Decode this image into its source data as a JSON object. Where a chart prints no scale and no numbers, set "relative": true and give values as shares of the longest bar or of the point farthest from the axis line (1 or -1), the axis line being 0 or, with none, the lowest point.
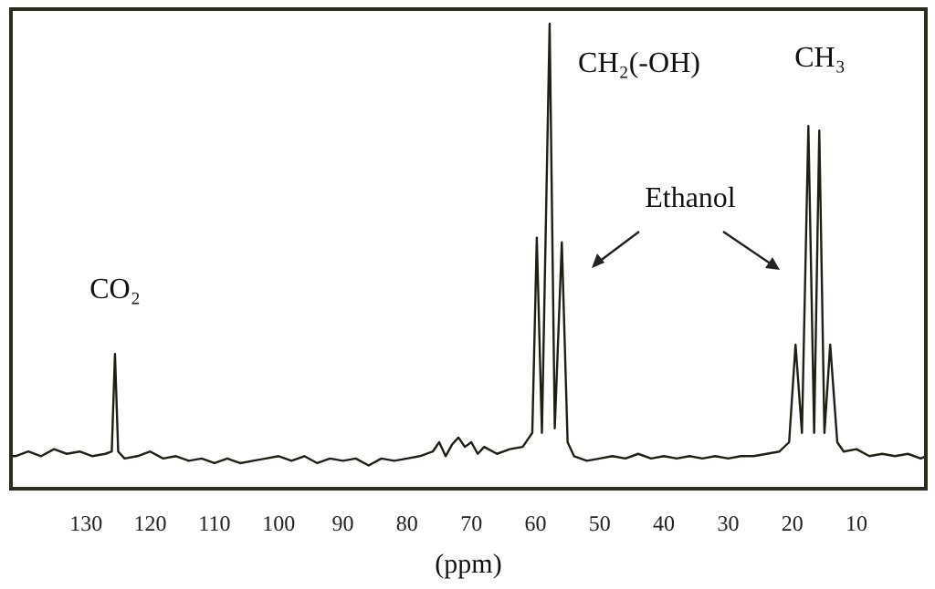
{
  "chart_data": {
    "type": "line",
    "relative": true,
    "xlabel": "(ppm)",
    "xlim": [
      141.7,
      -0.8
    ],
    "xticks": [
      130,
      120,
      110,
      100,
      90,
      80,
      70,
      60,
      50,
      40,
      30,
      20,
      10
    ],
    "grid": false,
    "marker": "none",
    "line_style": "solid",
    "series": [
      {
        "color": "#1f1f14",
        "x": [
          141.7,
          141,
          139,
          137,
          135,
          133,
          131,
          129,
          127,
          126,
          125.5,
          125,
          124,
          122,
          120,
          118,
          116,
          114,
          112,
          110,
          108,
          106,
          104,
          102,
          100,
          98,
          96,
          94,
          92,
          90,
          88,
          86,
          84,
          82,
          80,
          78,
          76,
          75,
          74,
          73,
          72,
          71,
          70,
          69,
          68,
          66,
          64,
          62,
          61,
          60.5,
          59.8,
          59,
          57.8,
          57,
          55.9,
          55,
          54,
          52,
          50,
          48,
          46,
          44,
          42,
          40,
          38,
          36,
          34,
          32,
          30,
          28,
          26,
          24,
          22,
          20.5,
          19.5,
          18.5,
          17.5,
          16.6,
          15.8,
          15,
          14.1,
          13,
          12,
          10,
          8,
          6,
          4,
          2,
          0,
          -0.8
        ],
        "values": [
          0.07,
          0.07,
          0.08,
          0.07,
          0.085,
          0.075,
          0.08,
          0.07,
          0.075,
          0.08,
          0.29,
          0.08,
          0.065,
          0.07,
          0.08,
          0.065,
          0.07,
          0.06,
          0.065,
          0.055,
          0.065,
          0.055,
          0.06,
          0.065,
          0.07,
          0.06,
          0.07,
          0.055,
          0.065,
          0.06,
          0.065,
          0.05,
          0.065,
          0.06,
          0.065,
          0.07,
          0.08,
          0.1,
          0.07,
          0.095,
          0.11,
          0.09,
          0.1,
          0.075,
          0.09,
          0.075,
          0.085,
          0.09,
          0.11,
          0.12,
          0.54,
          0.12,
          1.0,
          0.13,
          0.53,
          0.1,
          0.07,
          0.06,
          0.065,
          0.07,
          0.065,
          0.075,
          0.065,
          0.07,
          0.065,
          0.07,
          0.065,
          0.07,
          0.065,
          0.07,
          0.07,
          0.075,
          0.08,
          0.1,
          0.31,
          0.12,
          0.78,
          0.12,
          0.77,
          0.12,
          0.31,
          0.1,
          0.08,
          0.085,
          0.07,
          0.075,
          0.07,
          0.075,
          0.065,
          0.07
        ]
      }
    ],
    "annotations": [
      "CO₂",
      "CH₂(-OH)",
      "CH₃",
      "Ethanol"
    ]
  }
}
